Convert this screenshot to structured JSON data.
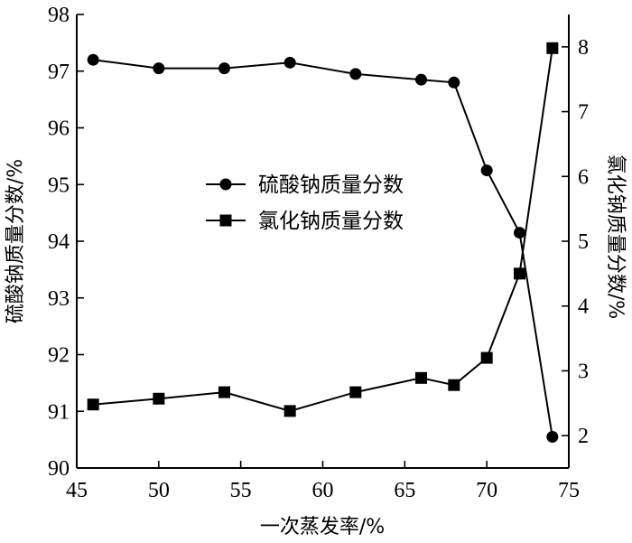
{
  "chart_data": {
    "type": "line",
    "xlabel": "一次蒸发率/%",
    "ylabel_left": "硫酸钠质量分数/%",
    "ylabel_right": "氯化钠质量分数/%",
    "xlim": [
      45,
      75
    ],
    "ylim_left": [
      90,
      98
    ],
    "ylim_right": [
      1.5,
      8.5
    ],
    "x_ticks": [
      45,
      50,
      55,
      60,
      65,
      70,
      75
    ],
    "y_left_ticks": [
      90,
      91,
      92,
      93,
      94,
      95,
      96,
      97,
      98
    ],
    "y_right_ticks": [
      2,
      3,
      4,
      5,
      6,
      7,
      8
    ],
    "legend_position": "center",
    "grid": false,
    "series": [
      {
        "name": "硫酸钠质量分数",
        "axis": "left",
        "marker": "circle",
        "x": [
          46,
          50,
          54,
          58,
          62,
          66,
          68,
          70,
          72,
          74
        ],
        "y": [
          97.2,
          97.05,
          97.05,
          97.15,
          96.95,
          96.85,
          96.8,
          95.25,
          94.15,
          90.55
        ]
      },
      {
        "name": "氯化钠质量分数",
        "axis": "right",
        "marker": "square",
        "x": [
          46,
          50,
          54,
          58,
          62,
          66,
          68,
          70,
          72,
          74
        ],
        "y": [
          2.48,
          2.57,
          2.67,
          2.38,
          2.67,
          2.89,
          2.78,
          3.2,
          4.5,
          7.98
        ]
      }
    ]
  }
}
